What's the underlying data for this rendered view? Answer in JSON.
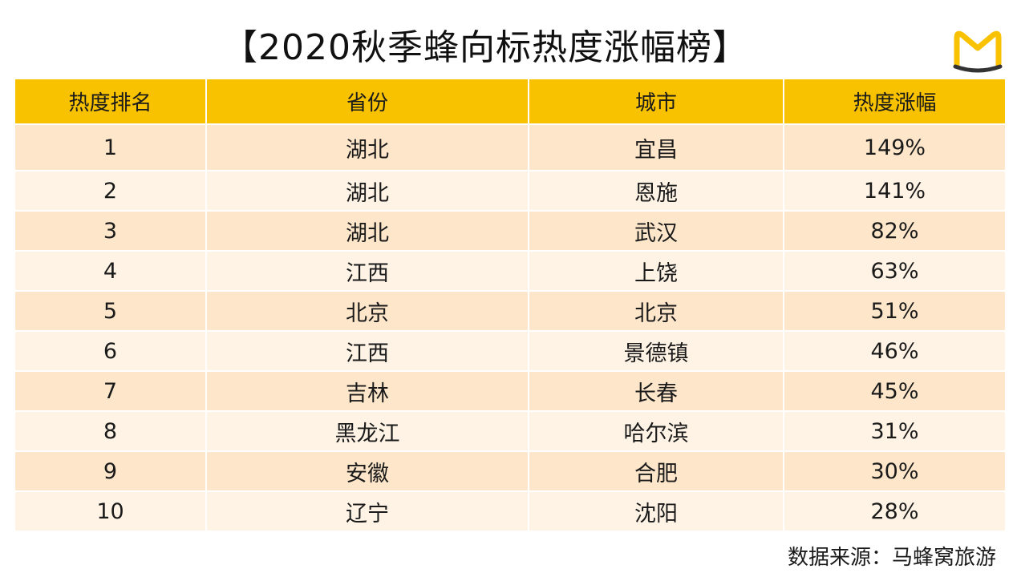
{
  "title": "【2020秋季蜂向标热度涨幅榜】",
  "logo": {
    "icon": "mafengwo-m-logo-icon",
    "color": "#f8c200",
    "stroke": "#333333"
  },
  "colors": {
    "header": "#f8c200",
    "row_odd": "#fde6c9",
    "row_even": "#fef3e5"
  },
  "source": "数据来源：马蜂窝旅游",
  "chart_data": {
    "type": "table",
    "columns": [
      "热度排名",
      "省份",
      "城市",
      "热度涨幅"
    ],
    "rows": [
      [
        "1",
        "湖北",
        "宜昌",
        "149%"
      ],
      [
        "2",
        "湖北",
        "恩施",
        "141%"
      ],
      [
        "3",
        "湖北",
        "武汉",
        "82%"
      ],
      [
        "4",
        "江西",
        "上饶",
        "63%"
      ],
      [
        "5",
        "北京",
        "北京",
        "51%"
      ],
      [
        "6",
        "江西",
        "景德镇",
        "46%"
      ],
      [
        "7",
        "吉林",
        "长春",
        "45%"
      ],
      [
        "8",
        "黑龙江",
        "哈尔滨",
        "31%"
      ],
      [
        "9",
        "安徽",
        "合肥",
        "30%"
      ],
      [
        "10",
        "辽宁",
        "沈阳",
        "28%"
      ]
    ]
  }
}
